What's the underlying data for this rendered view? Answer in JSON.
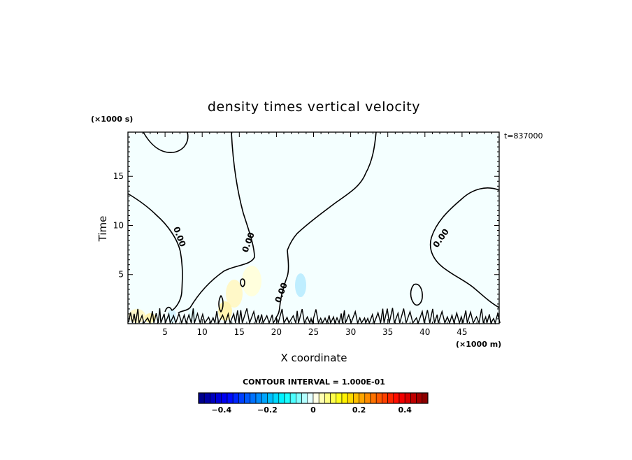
{
  "chart_data": {
    "type": "contour",
    "title": "density times vertical velocity",
    "xlabel": "X coordinate",
    "ylabel": "Time",
    "x_unit": "(×1000 m)",
    "y_unit": "(×1000 s)",
    "time_stamp": "t=837000",
    "xlim": [
      0,
      50
    ],
    "ylim": [
      0,
      19.5
    ],
    "x_ticks": [
      5,
      10,
      15,
      20,
      25,
      30,
      35,
      40,
      45
    ],
    "y_ticks": [
      5,
      10,
      15
    ],
    "contour_label": "0.00",
    "contour_interval_text": "CONTOUR INTERVAL = 1.000E-01",
    "colorbar": {
      "min": -0.5,
      "max": 0.5,
      "tick_values": [
        -0.4,
        -0.2,
        0,
        0.2,
        0.4
      ],
      "tick_labels": [
        "−0.4",
        "−0.2",
        "0",
        "0.2",
        "0.4"
      ],
      "levels": 40,
      "colors": [
        "#00007f",
        "#0000ff",
        "#007fff",
        "#00ffff",
        "#ffffff",
        "#ffff00",
        "#ff7f00",
        "#ff0000",
        "#7f0000"
      ]
    },
    "background_color": "#f4ffff",
    "grid": false
  }
}
